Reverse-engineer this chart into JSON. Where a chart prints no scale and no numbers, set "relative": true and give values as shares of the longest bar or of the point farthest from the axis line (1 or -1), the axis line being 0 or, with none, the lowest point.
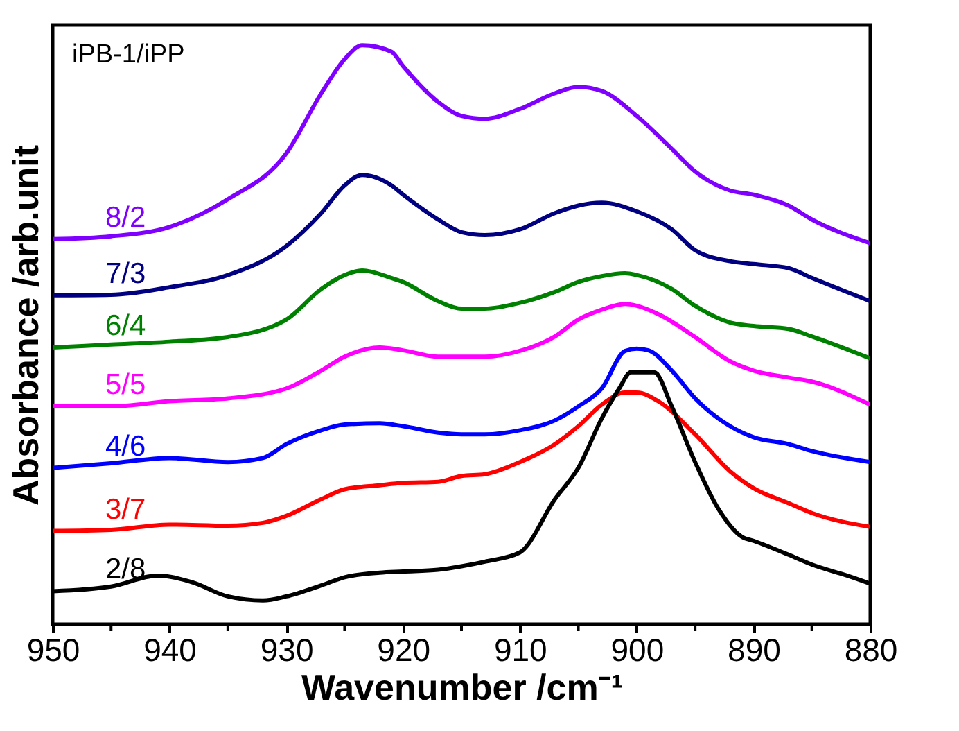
{
  "chart_data": {
    "type": "line",
    "relative": true,
    "xlabel": "Wavenumber /cm⁻¹",
    "ylabel": "Absorbance /arb.unit",
    "annotations": [
      "iPB-1/iPP"
    ],
    "xlim": [
      950,
      880
    ],
    "xticks": [
      950,
      {
        "value": 945,
        "label": null
      },
      940,
      {
        "value": 935,
        "label": null
      },
      930,
      {
        "value": 925,
        "label": null
      },
      920,
      {
        "value": 915,
        "label": null
      },
      910,
      {
        "value": 905,
        "label": null
      },
      900,
      {
        "value": 895,
        "label": null
      },
      890,
      {
        "value": 885,
        "label": null
      },
      880
    ],
    "grid": false,
    "legend": false,
    "marker": "none",
    "line_style": "solid",
    "series": [
      {
        "name": "8/2",
        "color": "#8000ff",
        "x": [
          950,
          945,
          940,
          935,
          930,
          927,
          925,
          923.5,
          921,
          920,
          917,
          915,
          913,
          910,
          907,
          905,
          903,
          900,
          897,
          895,
          892,
          890,
          887,
          885,
          880
        ],
        "values": [
          0.665,
          0.67,
          0.686,
          0.734,
          0.813,
          0.917,
          0.976,
          1,
          0.989,
          0.964,
          0.902,
          0.878,
          0.873,
          0.89,
          0.917,
          0.928,
          0.921,
          0.878,
          0.821,
          0.782,
          0.749,
          0.742,
          0.723,
          0.699,
          0.658
        ]
      },
      {
        "name": "7/3",
        "color": "#000080",
        "x": [
          950,
          945,
          940,
          935,
          930,
          927,
          925,
          923.5,
          921,
          920,
          917,
          915,
          913,
          910,
          907,
          905,
          903,
          900,
          897,
          895,
          892,
          890,
          887,
          885,
          880
        ],
        "values": [
          0.568,
          0.569,
          0.582,
          0.603,
          0.653,
          0.71,
          0.758,
          0.776,
          0.758,
          0.742,
          0.699,
          0.677,
          0.672,
          0.682,
          0.71,
          0.723,
          0.728,
          0.713,
          0.682,
          0.646,
          0.627,
          0.622,
          0.615,
          0.598,
          0.558
        ]
      },
      {
        "name": "6/4",
        "color": "#008000",
        "x": [
          950,
          945,
          940,
          935,
          930,
          927,
          925,
          923.5,
          921,
          920,
          917,
          915,
          913,
          910,
          907,
          905,
          903,
          901,
          900,
          897,
          895,
          892,
          890,
          887,
          885,
          880
        ],
        "values": [
          0.478,
          0.483,
          0.488,
          0.496,
          0.526,
          0.579,
          0.603,
          0.611,
          0.598,
          0.591,
          0.558,
          0.545,
          0.545,
          0.555,
          0.574,
          0.591,
          0.601,
          0.606,
          0.603,
          0.579,
          0.55,
          0.521,
          0.515,
          0.51,
          0.497,
          0.459
        ]
      },
      {
        "name": "5/5",
        "color": "#ff00ff",
        "x": [
          950,
          945,
          940,
          935,
          930,
          927,
          925,
          922,
          920,
          917,
          915,
          913,
          910,
          907,
          905,
          903,
          901,
          900,
          898,
          895,
          892,
          890,
          887,
          885,
          880
        ],
        "values": [
          0.376,
          0.376,
          0.385,
          0.39,
          0.407,
          0.438,
          0.462,
          0.478,
          0.473,
          0.462,
          0.462,
          0.462,
          0.472,
          0.497,
          0.526,
          0.543,
          0.553,
          0.55,
          0.534,
          0.496,
          0.454,
          0.438,
          0.426,
          0.419,
          0.379
        ]
      },
      {
        "name": "4/6",
        "color": "#0000ff",
        "x": [
          950,
          945,
          940,
          935,
          932,
          930,
          927,
          925,
          922,
          920,
          917,
          915,
          913,
          910,
          907,
          905,
          903,
          901,
          900,
          899,
          897,
          895,
          892,
          890,
          887,
          885,
          880
        ],
        "values": [
          0.27,
          0.278,
          0.287,
          0.28,
          0.287,
          0.311,
          0.335,
          0.345,
          0.347,
          0.342,
          0.331,
          0.328,
          0.328,
          0.335,
          0.352,
          0.376,
          0.407,
          0.472,
          0.476,
          0.473,
          0.438,
          0.39,
          0.342,
          0.323,
          0.311,
          0.299,
          0.28
        ]
      },
      {
        "name": "3/7",
        "color": "#ff0000",
        "x": [
          950,
          945,
          940,
          935,
          932,
          930,
          927,
          925,
          922,
          920,
          917,
          915,
          913,
          910,
          907,
          905,
          903,
          901,
          900,
          898,
          895,
          892,
          890,
          887,
          885,
          880
        ],
        "values": [
          0.161,
          0.163,
          0.172,
          0.17,
          0.175,
          0.187,
          0.216,
          0.233,
          0.24,
          0.244,
          0.246,
          0.256,
          0.259,
          0.28,
          0.311,
          0.342,
          0.379,
          0.4,
          0.4,
          0.383,
          0.328,
          0.264,
          0.235,
          0.209,
          0.192,
          0.168
        ]
      },
      {
        "name": "2/8",
        "color": "#000000",
        "x": [
          950,
          945,
          941,
          938,
          935,
          932,
          930,
          927,
          925,
          922,
          920,
          917,
          915,
          913,
          910,
          907,
          905,
          903,
          901.5,
          900.5,
          898.5,
          897,
          895,
          893,
          891,
          890,
          887,
          885,
          882,
          880
        ],
        "values": [
          0.057,
          0.065,
          0.084,
          0.072,
          0.048,
          0.041,
          0.048,
          0.067,
          0.081,
          0.089,
          0.091,
          0.094,
          0.1,
          0.108,
          0.124,
          0.216,
          0.27,
          0.355,
          0.407,
          0.435,
          0.435,
          0.376,
          0.28,
          0.199,
          0.151,
          0.144,
          0.12,
          0.103,
          0.084,
          0.07
        ]
      }
    ]
  }
}
